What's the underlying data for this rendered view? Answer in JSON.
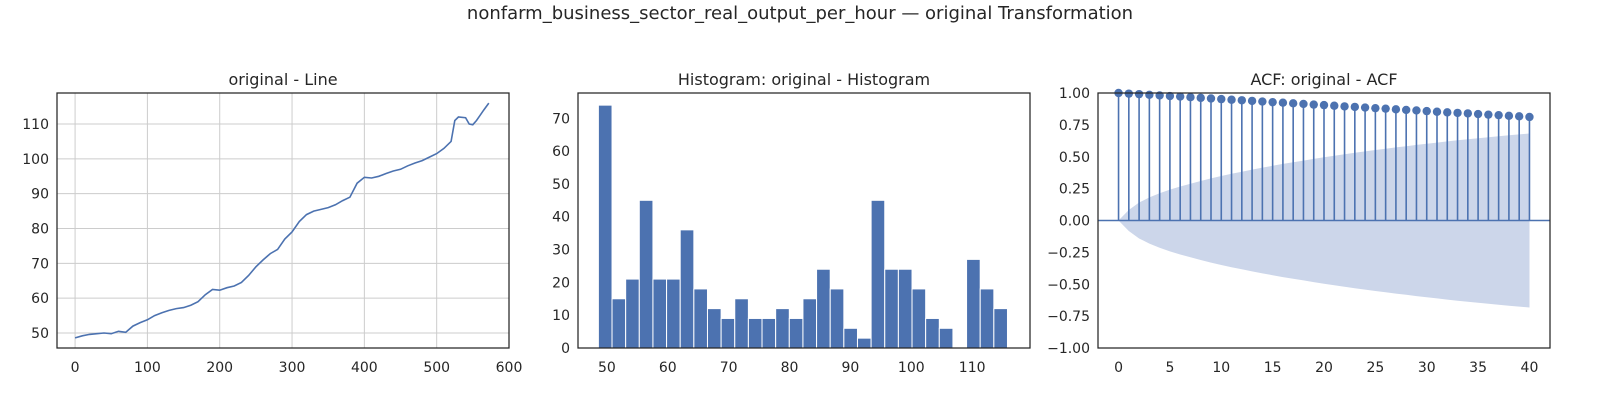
{
  "figure": {
    "suptitle": "nonfarm_business_sector_real_output_per_hour — original Transformation",
    "colors": {
      "line": "#4c72b0",
      "bar": "#4c72b0",
      "band": "#ccd6ea",
      "grid": "#cccccc",
      "axis": "#262626"
    }
  },
  "chart_data": [
    {
      "type": "line",
      "title": "original - Line",
      "xlabel": "",
      "ylabel": "",
      "xlim": [
        -25,
        600
      ],
      "ylim": [
        45.7,
        118.9
      ],
      "xticks": [
        0,
        100,
        200,
        300,
        400,
        500,
        600
      ],
      "yticks": [
        50,
        60,
        70,
        80,
        90,
        100,
        110
      ],
      "grid": true,
      "n_points": 573,
      "points": [
        [
          0,
          48.6
        ],
        [
          10,
          49.2
        ],
        [
          20,
          49.6
        ],
        [
          30,
          49.8
        ],
        [
          40,
          50.0
        ],
        [
          50,
          49.8
        ],
        [
          60,
          50.5
        ],
        [
          70,
          50.2
        ],
        [
          80,
          52.0
        ],
        [
          90,
          53.0
        ],
        [
          100,
          53.8
        ],
        [
          110,
          55.0
        ],
        [
          120,
          55.8
        ],
        [
          130,
          56.5
        ],
        [
          140,
          57.0
        ],
        [
          150,
          57.3
        ],
        [
          160,
          58.0
        ],
        [
          170,
          59.0
        ],
        [
          180,
          61.0
        ],
        [
          190,
          62.5
        ],
        [
          200,
          62.3
        ],
        [
          210,
          63.0
        ],
        [
          220,
          63.5
        ],
        [
          230,
          64.5
        ],
        [
          240,
          66.5
        ],
        [
          250,
          69.0
        ],
        [
          260,
          71.0
        ],
        [
          270,
          72.8
        ],
        [
          280,
          74.0
        ],
        [
          290,
          77.0
        ],
        [
          300,
          79.0
        ],
        [
          310,
          82.0
        ],
        [
          320,
          84.0
        ],
        [
          330,
          85.0
        ],
        [
          340,
          85.5
        ],
        [
          350,
          86.0
        ],
        [
          360,
          86.8
        ],
        [
          370,
          88.0
        ],
        [
          380,
          89.0
        ],
        [
          390,
          93.0
        ],
        [
          400,
          94.7
        ],
        [
          410,
          94.5
        ],
        [
          420,
          95.0
        ],
        [
          430,
          95.8
        ],
        [
          440,
          96.5
        ],
        [
          450,
          97.0
        ],
        [
          460,
          98.0
        ],
        [
          470,
          98.8
        ],
        [
          480,
          99.5
        ],
        [
          490,
          100.5
        ],
        [
          500,
          101.5
        ],
        [
          510,
          103.0
        ],
        [
          520,
          105.0
        ],
        [
          525,
          111.0
        ],
        [
          530,
          112.0
        ],
        [
          540,
          111.8
        ],
        [
          545,
          110.0
        ],
        [
          550,
          109.8
        ],
        [
          555,
          111.0
        ],
        [
          560,
          112.5
        ],
        [
          565,
          114.0
        ],
        [
          572,
          116.0
        ]
      ]
    },
    {
      "type": "bar",
      "title": "Histogram: original - Histogram",
      "xlabel": "",
      "ylabel": "",
      "xlim": [
        45.25,
        119.5
      ],
      "ylim": [
        0,
        77.7
      ],
      "xticks": [
        50,
        60,
        70,
        80,
        90,
        100,
        110
      ],
      "yticks": [
        0,
        10,
        20,
        30,
        40,
        50,
        60,
        70
      ],
      "grid": false,
      "bin_start": 48.6,
      "bin_width": 2.24,
      "counts": [
        74,
        15,
        21,
        45,
        21,
        21,
        36,
        18,
        12,
        9,
        15,
        9,
        9,
        12,
        9,
        15,
        24,
        18,
        6,
        3,
        45,
        24,
        24,
        18,
        9,
        6,
        0,
        27,
        18,
        12
      ]
    },
    {
      "type": "stem",
      "title": "ACF: original - ACF",
      "xlabel": "",
      "ylabel": "",
      "xlim": [
        -2,
        42
      ],
      "ylim": [
        -1.0,
        1.0
      ],
      "xticks": [
        0,
        5,
        10,
        15,
        20,
        25,
        30,
        35,
        40
      ],
      "yticks": [
        -1.0,
        -0.75,
        -0.5,
        -0.25,
        0.0,
        0.25,
        0.5,
        0.75,
        1.0
      ],
      "ytick_labels": [
        "−1.00",
        "−0.75",
        "−0.50",
        "−0.25",
        "0.00",
        "0.25",
        "0.50",
        "0.75",
        "1.00"
      ],
      "grid": false,
      "lags": [
        0,
        1,
        2,
        3,
        4,
        5,
        6,
        7,
        8,
        9,
        10,
        11,
        12,
        13,
        14,
        15,
        16,
        17,
        18,
        19,
        20,
        21,
        22,
        23,
        24,
        25,
        26,
        27,
        28,
        29,
        30,
        31,
        32,
        33,
        34,
        35,
        36,
        37,
        38,
        39,
        40
      ],
      "acf": [
        1.0,
        0.995,
        0.991,
        0.986,
        0.981,
        0.976,
        0.972,
        0.967,
        0.962,
        0.957,
        0.952,
        0.947,
        0.943,
        0.938,
        0.933,
        0.928,
        0.924,
        0.919,
        0.914,
        0.909,
        0.905,
        0.9,
        0.895,
        0.891,
        0.886,
        0.881,
        0.877,
        0.872,
        0.867,
        0.863,
        0.858,
        0.853,
        0.848,
        0.844,
        0.84,
        0.835,
        0.83,
        0.826,
        0.821,
        0.817,
        0.812
      ],
      "confint": [
        0.0,
        0.082,
        0.141,
        0.181,
        0.214,
        0.242,
        0.267,
        0.289,
        0.31,
        0.33,
        0.349,
        0.367,
        0.383,
        0.399,
        0.415,
        0.429,
        0.444,
        0.457,
        0.47,
        0.483,
        0.496,
        0.508,
        0.519,
        0.531,
        0.542,
        0.553,
        0.563,
        0.573,
        0.583,
        0.593,
        0.602,
        0.611,
        0.62,
        0.629,
        0.637,
        0.645,
        0.653,
        0.661,
        0.668,
        0.675,
        0.682
      ]
    }
  ]
}
